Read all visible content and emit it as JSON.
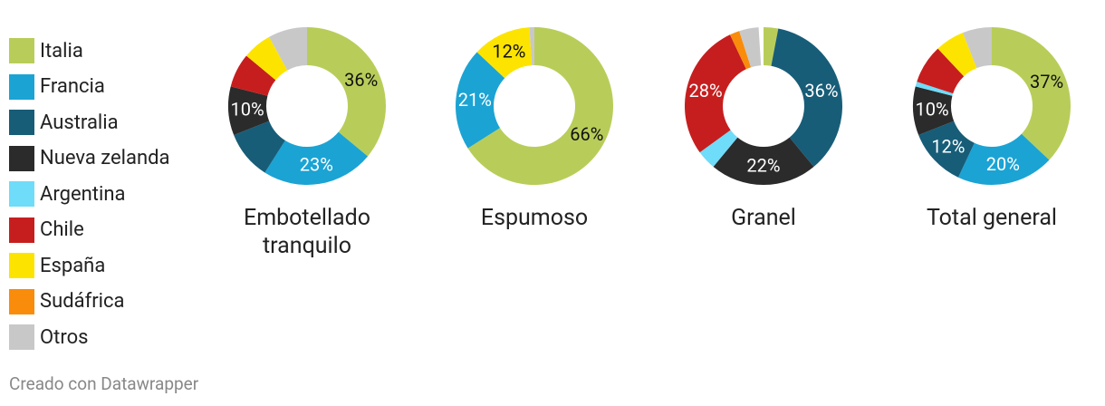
{
  "chart_data": {
    "type": "donut",
    "categories": [
      "Italia",
      "Francia",
      "Australia",
      "Nueva zelanda",
      "Argentina",
      "Chile",
      "España",
      "Sudáfrica",
      "Otros"
    ],
    "colors": [
      "#b8cd59",
      "#1ba3d4",
      "#175d78",
      "#2b2b2b",
      "#6fdcf9",
      "#c61e1e",
      "#fce400",
      "#f98c0a",
      "#c8c8c8"
    ],
    "series": [
      {
        "name": "Embotellado tranquilo",
        "values": [
          36,
          23,
          10,
          10,
          0,
          7,
          6,
          0,
          8
        ],
        "value_labels": [
          "36%",
          "23%",
          null,
          "10%",
          null,
          null,
          null,
          null,
          null
        ]
      },
      {
        "name": "Espumoso",
        "values": [
          66,
          21,
          0,
          0,
          0,
          0,
          12,
          0,
          1
        ],
        "value_labels": [
          "66%",
          "21%",
          null,
          null,
          null,
          null,
          "12%",
          null,
          null
        ]
      },
      {
        "name": "Granel",
        "values": [
          3,
          0,
          36,
          22,
          4,
          28,
          0,
          2,
          4
        ],
        "value_labels": [
          null,
          null,
          "36%",
          "22%",
          null,
          "28%",
          null,
          null,
          null
        ]
      },
      {
        "name": "Total general",
        "values": [
          37,
          20,
          12,
          10,
          1,
          8,
          6,
          0,
          6
        ],
        "value_labels": [
          "37%",
          "20%",
          "12%",
          "10%",
          null,
          null,
          null,
          null,
          null
        ]
      }
    ],
    "credit": "Creado con Datawrapper"
  }
}
